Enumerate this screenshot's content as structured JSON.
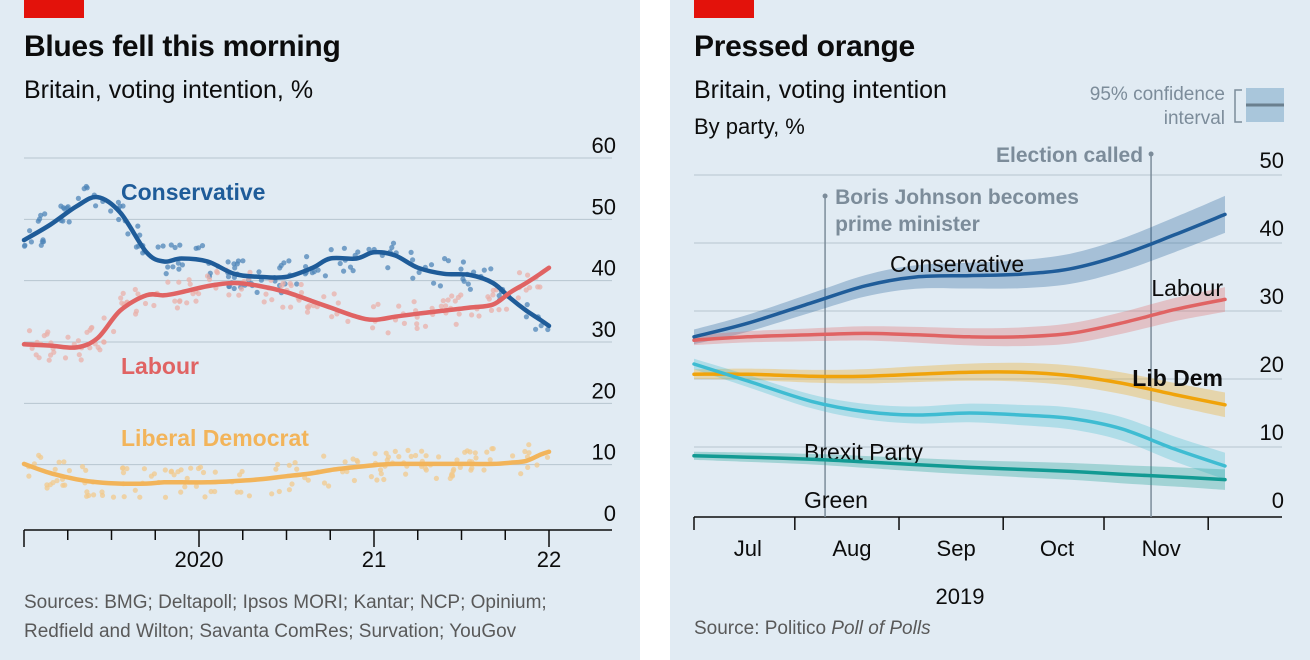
{
  "left": {
    "title": "Blues fell this morning",
    "subtitle": "Britain, voting intention, %",
    "source_line1": "Sources: BMG; Deltapoll; Ipsos MORI; Kantar; NCP; Opinium;",
    "source_line2": "Redfield and Wilton; Savanta ComRes; Survation; YouGov"
  },
  "right": {
    "title": "Pressed orange",
    "subtitle": "Britain, voting intention",
    "subtitle2": "By party, %",
    "ci_label_1": "95% confidence",
    "ci_label_2": "interval",
    "source_prefix": "Source: Politico ",
    "source_italic": "Poll of Polls",
    "year_label": "2019"
  },
  "colors": {
    "conservative": "#1f5c99",
    "labour": "#e06363",
    "libdem_left": "#f2b45a",
    "libdem_right": "#f0a30a",
    "brexit": "#3ebcd2",
    "green": "#129a93",
    "annotation": "#7c8c9a",
    "red_tag": "#e3120b"
  },
  "chart_data": [
    {
      "type": "line",
      "ylim": [
        0,
        60
      ],
      "yticks": [
        0,
        10,
        20,
        30,
        40,
        50,
        60
      ],
      "xlim": [
        2019.0,
        2022.0
      ],
      "xticks": [
        {
          "label": "2020",
          "x": 2020.0
        },
        {
          "label": "21",
          "x": 2021.0
        },
        {
          "label": "22",
          "x": 2022.0
        }
      ],
      "series": [
        {
          "name": "Conservative",
          "key": "conservative",
          "x": [
            2019.0,
            2019.15,
            2019.3,
            2019.42,
            2019.55,
            2019.7,
            2019.8,
            2019.9,
            2020.05,
            2020.2,
            2020.35,
            2020.5,
            2020.65,
            2020.75,
            2020.9,
            2021.0,
            2021.12,
            2021.25,
            2021.4,
            2021.55,
            2021.68,
            2021.78,
            2021.87,
            2021.95,
            2022.0
          ],
          "values": [
            44.5,
            47,
            50,
            51.5,
            49,
            42.5,
            41,
            41.5,
            41,
            39,
            38.5,
            38.5,
            40,
            41.5,
            41.5,
            42.5,
            42,
            40,
            39,
            38.8,
            37.5,
            35,
            33,
            31.5,
            30.5
          ]
        },
        {
          "name": "Labour",
          "key": "labour",
          "x": [
            2019.0,
            2019.15,
            2019.3,
            2019.42,
            2019.55,
            2019.7,
            2019.8,
            2019.9,
            2020.05,
            2020.2,
            2020.35,
            2020.5,
            2020.65,
            2020.75,
            2020.9,
            2021.0,
            2021.12,
            2021.25,
            2021.4,
            2021.55,
            2021.68,
            2021.78,
            2021.87,
            2021.95,
            2022.0
          ],
          "values": [
            27.5,
            27.3,
            27,
            28.5,
            33,
            35.5,
            35.5,
            36,
            37,
            37.5,
            37,
            36,
            34.5,
            33.5,
            32,
            31.5,
            32,
            32.5,
            33,
            33.5,
            34,
            36,
            37.5,
            39,
            40
          ]
        },
        {
          "name": "Liberal Democrat",
          "key": "libdem_left",
          "x": [
            2019.0,
            2019.15,
            2019.3,
            2019.42,
            2019.55,
            2019.7,
            2019.8,
            2019.9,
            2020.05,
            2020.2,
            2020.35,
            2020.5,
            2020.65,
            2020.75,
            2020.9,
            2021.0,
            2021.12,
            2021.25,
            2021.4,
            2021.55,
            2021.68,
            2021.78,
            2021.87,
            2021.95,
            2022.0
          ],
          "values": [
            8,
            6.5,
            5.5,
            5,
            4.8,
            4.8,
            5,
            5,
            5,
            5.2,
            5.5,
            6,
            6.5,
            7,
            7.5,
            7.8,
            8,
            8,
            8,
            8,
            8,
            8.2,
            8.5,
            9.5,
            10
          ]
        }
      ]
    },
    {
      "type": "line",
      "ylim": [
        0,
        50
      ],
      "yticks": [
        0,
        10,
        20,
        30,
        40,
        50
      ],
      "xlim": [
        "2019-06-15",
        "2019-11-20"
      ],
      "xticks": [
        {
          "label": "Jul",
          "date": "2019-07-01"
        },
        {
          "label": "Aug",
          "date": "2019-08-01"
        },
        {
          "label": "Sep",
          "date": "2019-09-01"
        },
        {
          "label": "Oct",
          "date": "2019-10-01"
        },
        {
          "label": "Nov",
          "date": "2019-11-01"
        }
      ],
      "annotations": [
        {
          "text_lines": [
            "Boris Johnson becomes",
            "prime minister"
          ],
          "date": "2019-07-24"
        },
        {
          "text_lines": [
            "Election called"
          ],
          "date": "2019-10-29"
        }
      ],
      "series": [
        {
          "name": "Conservative",
          "key": "conservative",
          "dates": [
            "2019-06-15",
            "2019-07-01",
            "2019-07-20",
            "2019-08-05",
            "2019-08-20",
            "2019-09-05",
            "2019-09-20",
            "2019-10-05",
            "2019-10-20",
            "2019-11-05",
            "2019-11-20"
          ],
          "values": [
            24,
            26,
            29,
            31.5,
            32.8,
            33,
            33.2,
            34,
            36,
            39,
            42
          ]
        },
        {
          "name": "Labour",
          "key": "labour",
          "dates": [
            "2019-06-15",
            "2019-07-01",
            "2019-07-20",
            "2019-08-05",
            "2019-08-20",
            "2019-09-05",
            "2019-09-20",
            "2019-10-05",
            "2019-10-20",
            "2019-11-05",
            "2019-11-20"
          ],
          "values": [
            23.5,
            24,
            24.3,
            24.5,
            24.3,
            24,
            24,
            24.5,
            26,
            28,
            29.5
          ]
        },
        {
          "name": "Lib Dem",
          "key": "libdem_right",
          "dates": [
            "2019-06-15",
            "2019-07-01",
            "2019-07-20",
            "2019-08-05",
            "2019-08-20",
            "2019-09-05",
            "2019-09-20",
            "2019-10-05",
            "2019-10-20",
            "2019-11-05",
            "2019-11-20"
          ],
          "values": [
            18.5,
            18.5,
            18.2,
            18.2,
            18.5,
            18.8,
            18.8,
            18.3,
            17.2,
            15.5,
            14
          ]
        },
        {
          "name": "Brexit Party",
          "key": "brexit",
          "dates": [
            "2019-06-15",
            "2019-07-01",
            "2019-07-20",
            "2019-08-05",
            "2019-08-20",
            "2019-09-05",
            "2019-09-20",
            "2019-10-05",
            "2019-10-20",
            "2019-11-05",
            "2019-11-20"
          ],
          "values": [
            20,
            17.5,
            14.5,
            13,
            12.5,
            12.8,
            12.5,
            12,
            10.5,
            7.5,
            5
          ]
        },
        {
          "name": "Green",
          "key": "green",
          "dates": [
            "2019-06-15",
            "2019-07-01",
            "2019-07-20",
            "2019-08-05",
            "2019-08-20",
            "2019-09-05",
            "2019-09-20",
            "2019-10-05",
            "2019-10-20",
            "2019-11-05",
            "2019-11-20"
          ],
          "values": [
            6.5,
            6.3,
            6,
            5.6,
            5.2,
            4.8,
            4.5,
            4.2,
            3.8,
            3.4,
            3
          ]
        }
      ]
    }
  ]
}
